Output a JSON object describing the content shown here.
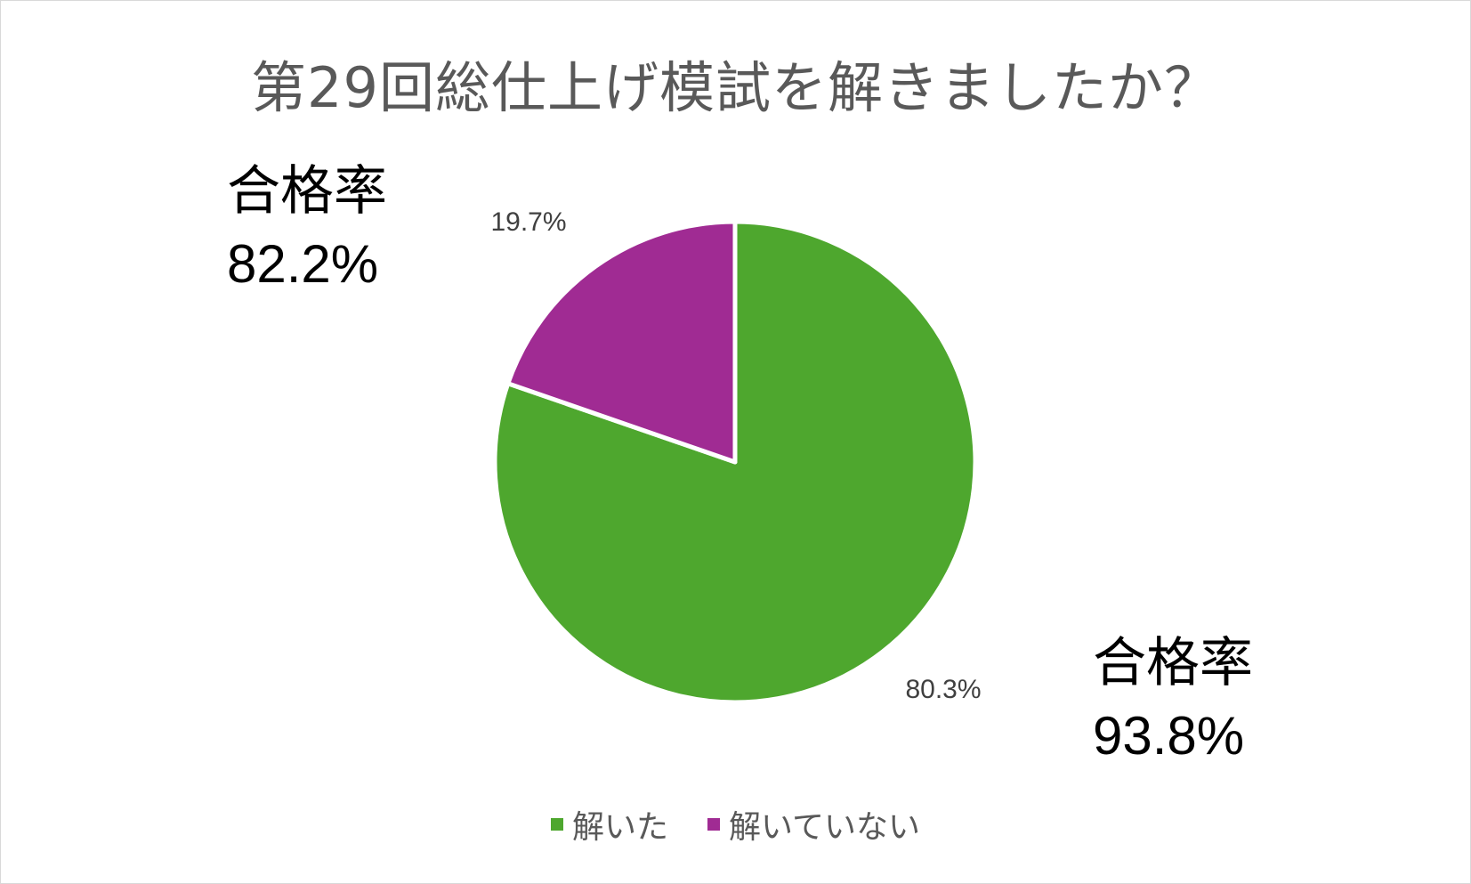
{
  "chart_data": {
    "type": "pie",
    "title": "第29回総仕上げ模試を解きましたか？",
    "categories": [
      "解いた",
      "解いていない"
    ],
    "values": [
      80.3,
      19.7
    ],
    "data_labels": [
      "80.3%",
      "19.7%"
    ],
    "colors": [
      "#4ea72e",
      "#a02b93"
    ],
    "legend_position": "bottom"
  },
  "annotations": {
    "left": {
      "label": "合格率",
      "value": "82.2%"
    },
    "right": {
      "label": "合格率",
      "value": "93.8%"
    }
  }
}
